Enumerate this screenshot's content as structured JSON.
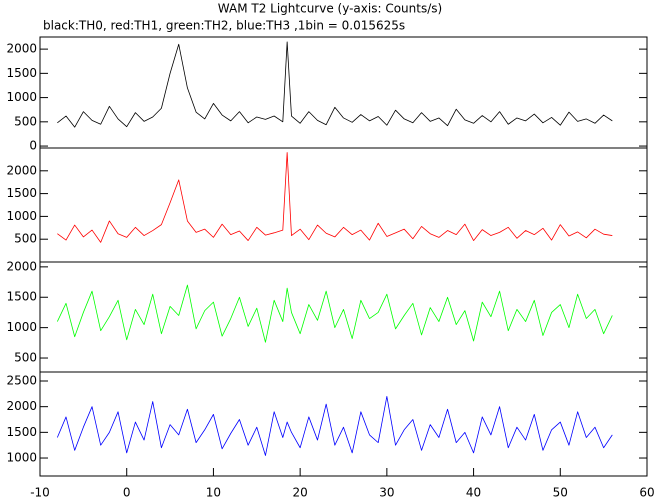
{
  "chart_data": [
    {
      "type": "line",
      "title": "WAM T2 Lightcurve (y-axis: Counts/s)",
      "subtitle": "black:TH0, red:TH1, green:TH2, blue:TH3 ,1bin = 0.015625s",
      "x": [
        -8,
        -7,
        -6,
        -5,
        -4,
        -3,
        -2,
        -1,
        0,
        1,
        2,
        3,
        4,
        5,
        6,
        7,
        8,
        9,
        10,
        11,
        12,
        13,
        14,
        15,
        16,
        17,
        18,
        18.5,
        19,
        20,
        21,
        22,
        23,
        24,
        25,
        26,
        27,
        28,
        29,
        30,
        31,
        32,
        33,
        34,
        35,
        36,
        37,
        38,
        39,
        40,
        41,
        42,
        43,
        44,
        45,
        46,
        47,
        48,
        49,
        50,
        51,
        52,
        53,
        54,
        55,
        56
      ],
      "values": [
        480,
        620,
        390,
        710,
        530,
        450,
        820,
        560,
        400,
        690,
        510,
        600,
        780,
        1500,
        2100,
        1200,
        700,
        560,
        880,
        640,
        520,
        710,
        480,
        600,
        550,
        620,
        500,
        2150,
        620,
        470,
        710,
        530,
        440,
        800,
        580,
        490,
        650,
        520,
        610,
        430,
        740,
        560,
        480,
        690,
        510,
        580,
        420,
        760,
        540,
        470,
        630,
        500,
        710,
        450,
        580,
        520,
        660,
        480,
        590,
        430,
        700,
        510,
        560,
        470,
        640,
        520
      ],
      "color": "#000000",
      "xlim": [
        -10,
        60
      ],
      "ylim": [
        -40,
        2250
      ],
      "yticks": [
        0,
        500,
        1000,
        1500,
        2000
      ]
    },
    {
      "type": "line",
      "x": [
        -8,
        -7,
        -6,
        -5,
        -4,
        -3,
        -2,
        -1,
        0,
        1,
        2,
        3,
        4,
        5,
        6,
        7,
        8,
        9,
        10,
        11,
        12,
        13,
        14,
        15,
        16,
        17,
        18,
        18.5,
        19,
        20,
        21,
        22,
        23,
        24,
        25,
        26,
        27,
        28,
        29,
        30,
        31,
        32,
        33,
        34,
        35,
        36,
        37,
        38,
        39,
        40,
        41,
        42,
        43,
        44,
        45,
        46,
        47,
        48,
        49,
        50,
        51,
        52,
        53,
        54,
        55,
        56
      ],
      "values": [
        620,
        480,
        810,
        550,
        700,
        430,
        900,
        620,
        540,
        760,
        580,
        690,
        820,
        1300,
        1800,
        900,
        650,
        720,
        540,
        830,
        600,
        680,
        470,
        760,
        590,
        640,
        700,
        2400,
        580,
        720,
        490,
        810,
        630,
        550,
        760,
        600,
        700,
        480,
        850,
        560,
        640,
        720,
        510,
        780,
        620,
        540,
        690,
        600,
        830,
        470,
        710,
        580,
        650,
        760,
        520,
        690,
        600,
        740,
        480,
        820,
        570,
        660,
        530,
        720,
        610,
        580
      ],
      "color": "#ff0000",
      "xlim": [
        -10,
        60
      ],
      "ylim": [
        0,
        2500
      ],
      "yticks": [
        500,
        1000,
        1500,
        2000
      ]
    },
    {
      "type": "line",
      "x": [
        -8,
        -7,
        -6,
        -5,
        -4,
        -3,
        -2,
        -1,
        0,
        1,
        2,
        3,
        4,
        5,
        6,
        7,
        8,
        9,
        10,
        11,
        12,
        13,
        14,
        15,
        16,
        17,
        18,
        18.5,
        19,
        20,
        21,
        22,
        23,
        24,
        25,
        26,
        27,
        28,
        29,
        30,
        31,
        32,
        33,
        34,
        35,
        36,
        37,
        38,
        39,
        40,
        41,
        42,
        43,
        44,
        45,
        46,
        47,
        48,
        49,
        50,
        51,
        52,
        53,
        54,
        55,
        56
      ],
      "values": [
        1100,
        1400,
        850,
        1250,
        1600,
        950,
        1180,
        1450,
        800,
        1300,
        1050,
        1550,
        900,
        1350,
        1200,
        1700,
        980,
        1280,
        1420,
        860,
        1150,
        1500,
        1020,
        1320,
        760,
        1450,
        1100,
        1650,
        1250,
        900,
        1380,
        1120,
        1600,
        1000,
        1300,
        820,
        1450,
        1150,
        1250,
        1550,
        980,
        1200,
        1400,
        880,
        1330,
        1100,
        1500,
        1050,
        1280,
        780,
        1420,
        1180,
        1600,
        950,
        1300,
        1100,
        1450,
        870,
        1250,
        1380,
        1000,
        1550,
        1150,
        1300,
        900,
        1200
      ],
      "color": "#00ff00",
      "xlim": [
        -10,
        60
      ],
      "ylim": [
        270,
        2080
      ],
      "yticks": [
        500,
        1000,
        1500,
        2000
      ]
    },
    {
      "type": "line",
      "x": [
        -8,
        -7,
        -6,
        -5,
        -4,
        -3,
        -2,
        -1,
        0,
        1,
        2,
        3,
        4,
        5,
        6,
        7,
        8,
        9,
        10,
        11,
        12,
        13,
        14,
        15,
        16,
        17,
        18,
        18.5,
        19,
        20,
        21,
        22,
        23,
        24,
        25,
        26,
        27,
        28,
        29,
        30,
        31,
        32,
        33,
        34,
        35,
        36,
        37,
        38,
        39,
        40,
        41,
        42,
        43,
        44,
        45,
        46,
        47,
        48,
        49,
        50,
        51,
        52,
        53,
        54,
        55,
        56
      ],
      "values": [
        1400,
        1800,
        1150,
        1600,
        2000,
        1250,
        1500,
        1900,
        1100,
        1700,
        1350,
        2100,
        1200,
        1650,
        1450,
        1950,
        1300,
        1550,
        1850,
        1180,
        1480,
        1750,
        1250,
        1600,
        1050,
        1900,
        1400,
        1700,
        1500,
        1200,
        1800,
        1350,
        2050,
        1250,
        1600,
        1100,
        1900,
        1450,
        1300,
        2200,
        1250,
        1550,
        1750,
        1150,
        1650,
        1400,
        1950,
        1300,
        1500,
        1100,
        1800,
        1450,
        2000,
        1200,
        1600,
        1350,
        1850,
        1150,
        1550,
        1700,
        1250,
        1900,
        1400,
        1600,
        1200,
        1450
      ],
      "color": "#0000ff",
      "xlim": [
        -10,
        60
      ],
      "ylim": [
        650,
        2675
      ],
      "yticks": [
        1000,
        1500,
        2000,
        2500
      ],
      "xticks": [
        -10,
        0,
        10,
        20,
        30,
        40,
        50,
        60
      ]
    }
  ]
}
